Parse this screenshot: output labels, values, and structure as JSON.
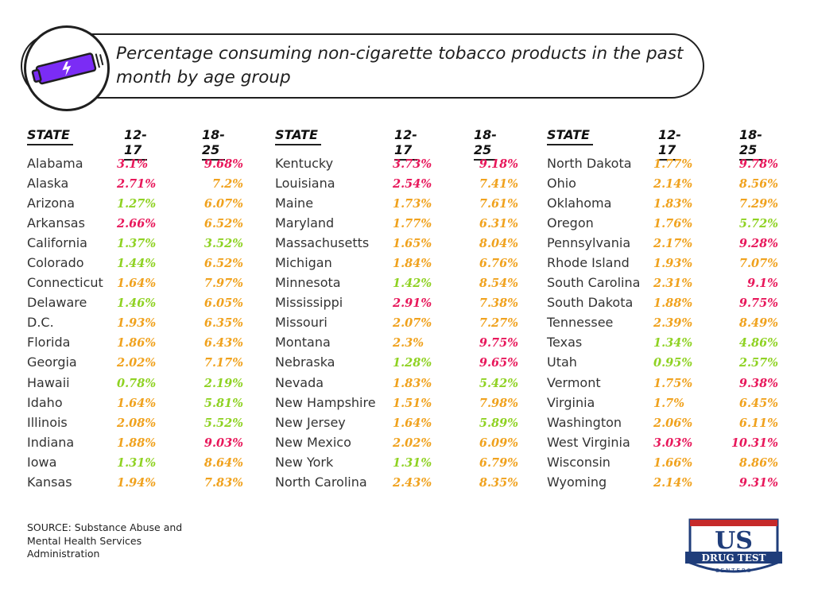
{
  "title": "Percentage consuming non-cigarette tobacco products in the past month by age group",
  "headers": {
    "state": "STATE",
    "age1": "12-17",
    "age2": "18-25"
  },
  "colors": {
    "high": "#e8185b",
    "mid": "#f0a21e",
    "low": "#8fd223"
  },
  "columns": [
    {
      "rows": [
        {
          "state": "Alabama",
          "v1": "3.1%",
          "c1": "high",
          "v2": "9.68%",
          "c2": "high"
        },
        {
          "state": "Alaska",
          "v1": "2.71%",
          "c1": "high",
          "v2": "7.2%",
          "c2": "mid"
        },
        {
          "state": "Arizona",
          "v1": "1.27%",
          "c1": "low",
          "v2": "6.07%",
          "c2": "mid"
        },
        {
          "state": "Arkansas",
          "v1": "2.66%",
          "c1": "high",
          "v2": "6.52%",
          "c2": "mid"
        },
        {
          "state": "California",
          "v1": "1.37%",
          "c1": "low",
          "v2": "3.52%",
          "c2": "low"
        },
        {
          "state": "Colorado",
          "v1": "1.44%",
          "c1": "low",
          "v2": "6.52%",
          "c2": "mid"
        },
        {
          "state": "Connecticut",
          "v1": "1.64%",
          "c1": "mid",
          "v2": "7.97%",
          "c2": "mid"
        },
        {
          "state": "Delaware",
          "v1": "1.46%",
          "c1": "low",
          "v2": "6.05%",
          "c2": "mid"
        },
        {
          "state": "D.C.",
          "v1": "1.93%",
          "c1": "mid",
          "v2": "6.35%",
          "c2": "mid"
        },
        {
          "state": "Florida",
          "v1": "1.86%",
          "c1": "mid",
          "v2": "6.43%",
          "c2": "mid"
        },
        {
          "state": "Georgia",
          "v1": "2.02%",
          "c1": "mid",
          "v2": "7.17%",
          "c2": "mid"
        },
        {
          "state": "Hawaii",
          "v1": "0.78%",
          "c1": "low",
          "v2": "2.19%",
          "c2": "low"
        },
        {
          "state": "Idaho",
          "v1": "1.64%",
          "c1": "mid",
          "v2": "5.81%",
          "c2": "low"
        },
        {
          "state": "Illinois",
          "v1": "2.08%",
          "c1": "mid",
          "v2": "5.52%",
          "c2": "low"
        },
        {
          "state": "Indiana",
          "v1": "1.88%",
          "c1": "mid",
          "v2": "9.03%",
          "c2": "high"
        },
        {
          "state": "Iowa",
          "v1": "1.31%",
          "c1": "low",
          "v2": "8.64%",
          "c2": "mid"
        },
        {
          "state": "Kansas",
          "v1": "1.94%",
          "c1": "mid",
          "v2": "7.83%",
          "c2": "mid"
        }
      ]
    },
    {
      "rows": [
        {
          "state": "Kentucky",
          "v1": "3.73%",
          "c1": "high",
          "v2": "9.18%",
          "c2": "high"
        },
        {
          "state": "Louisiana",
          "v1": "2.54%",
          "c1": "high",
          "v2": "7.41%",
          "c2": "mid"
        },
        {
          "state": "Maine",
          "v1": "1.73%",
          "c1": "mid",
          "v2": "7.61%",
          "c2": "mid"
        },
        {
          "state": "Maryland",
          "v1": "1.77%",
          "c1": "mid",
          "v2": "6.31%",
          "c2": "mid"
        },
        {
          "state": "Massachusetts",
          "v1": "1.65%",
          "c1": "mid",
          "v2": "8.04%",
          "c2": "mid"
        },
        {
          "state": "Michigan",
          "v1": "1.84%",
          "c1": "mid",
          "v2": "6.76%",
          "c2": "mid"
        },
        {
          "state": "Minnesota",
          "v1": "1.42%",
          "c1": "low",
          "v2": "8.54%",
          "c2": "mid"
        },
        {
          "state": "Mississippi",
          "v1": "2.91%",
          "c1": "high",
          "v2": "7.38%",
          "c2": "mid"
        },
        {
          "state": "Missouri",
          "v1": "2.07%",
          "c1": "mid",
          "v2": "7.27%",
          "c2": "mid"
        },
        {
          "state": "Montana",
          "v1": "2.3%",
          "c1": "mid",
          "v2": "9.75%",
          "c2": "high"
        },
        {
          "state": "Nebraska",
          "v1": "1.28%",
          "c1": "low",
          "v2": "9.65%",
          "c2": "high"
        },
        {
          "state": "Nevada",
          "v1": "1.83%",
          "c1": "mid",
          "v2": "5.42%",
          "c2": "low"
        },
        {
          "state": "New Hampshire",
          "v1": "1.51%",
          "c1": "mid",
          "v2": "7.98%",
          "c2": "mid"
        },
        {
          "state": "New Jersey",
          "v1": "1.64%",
          "c1": "mid",
          "v2": "5.89%",
          "c2": "low"
        },
        {
          "state": "New Mexico",
          "v1": "2.02%",
          "c1": "mid",
          "v2": "6.09%",
          "c2": "mid"
        },
        {
          "state": "New York",
          "v1": "1.31%",
          "c1": "low",
          "v2": "6.79%",
          "c2": "mid"
        },
        {
          "state": "North Carolina",
          "v1": "2.43%",
          "c1": "mid",
          "v2": "8.35%",
          "c2": "mid"
        }
      ]
    },
    {
      "rows": [
        {
          "state": "North Dakota",
          "v1": "1.77%",
          "c1": "mid",
          "v2": "9.78%",
          "c2": "high"
        },
        {
          "state": "Ohio",
          "v1": "2.14%",
          "c1": "mid",
          "v2": "8.56%",
          "c2": "mid"
        },
        {
          "state": "Oklahoma",
          "v1": "1.83%",
          "c1": "mid",
          "v2": "7.29%",
          "c2": "mid"
        },
        {
          "state": "Oregon",
          "v1": "1.76%",
          "c1": "mid",
          "v2": "5.72%",
          "c2": "low"
        },
        {
          "state": "Pennsylvania",
          "v1": "2.17%",
          "c1": "mid",
          "v2": "9.28%",
          "c2": "high"
        },
        {
          "state": "Rhode Island",
          "v1": "1.93%",
          "c1": "mid",
          "v2": "7.07%",
          "c2": "mid"
        },
        {
          "state": "South Carolina",
          "v1": "2.31%",
          "c1": "mid",
          "v2": "9.1%",
          "c2": "high"
        },
        {
          "state": "South Dakota",
          "v1": "1.88%",
          "c1": "mid",
          "v2": "9.75%",
          "c2": "high"
        },
        {
          "state": "Tennessee",
          "v1": "2.39%",
          "c1": "mid",
          "v2": "8.49%",
          "c2": "mid"
        },
        {
          "state": "Texas",
          "v1": "1.34%",
          "c1": "low",
          "v2": "4.86%",
          "c2": "low"
        },
        {
          "state": "Utah",
          "v1": "0.95%",
          "c1": "low",
          "v2": "2.57%",
          "c2": "low"
        },
        {
          "state": "Vermont",
          "v1": "1.75%",
          "c1": "mid",
          "v2": "9.38%",
          "c2": "high"
        },
        {
          "state": "Virginia",
          "v1": "1.7%",
          "c1": "mid",
          "v2": "6.45%",
          "c2": "mid"
        },
        {
          "state": "Washington",
          "v1": "2.06%",
          "c1": "mid",
          "v2": "6.11%",
          "c2": "mid"
        },
        {
          "state": "West Virginia",
          "v1": "3.03%",
          "c1": "high",
          "v2": "10.31%",
          "c2": "high"
        },
        {
          "state": "Wisconsin",
          "v1": "1.66%",
          "c1": "mid",
          "v2": "8.86%",
          "c2": "mid"
        },
        {
          "state": "Wyoming",
          "v1": "2.14%",
          "c1": "mid",
          "v2": "9.31%",
          "c2": "high"
        }
      ]
    }
  ],
  "source": "SOURCE: Substance Abuse and Mental Health Services Administration",
  "logo": {
    "top": "US",
    "middle": "DRUG TEST",
    "bottom": "CENTERS"
  }
}
